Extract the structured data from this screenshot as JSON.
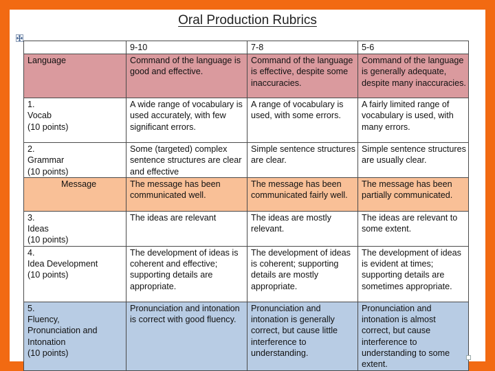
{
  "title": "Oral Production Rubrics",
  "header": [
    "",
    "9-10",
    "7-8",
    "5-6"
  ],
  "rows": [
    {
      "kind": "section",
      "label": "Language",
      "cells": [
        "Command of the language is good and effective.",
        "Command of the language is effective, despite some inaccuracies.",
        "Command of the language is generally adequate, despite many inaccuracies."
      ]
    },
    {
      "kind": "criterion",
      "num": "1.",
      "name": "Vocab",
      "points": "(10 points)",
      "cells": [
        "A wide range of vocabulary is used accurately, with few significant errors.",
        "A range of vocabulary is used, with some errors.",
        "A fairly limited range of vocabulary is used, with many errors."
      ]
    },
    {
      "kind": "criterion",
      "num": "2.",
      "name": "Grammar",
      "points": "(10 points)",
      "cells": [
        "Some (targeted) complex sentence structures are clear and effective",
        "Simple sentence structures are clear.",
        "Simple sentence structures are usually clear."
      ]
    },
    {
      "kind": "section",
      "label": "Message",
      "cells": [
        "The message has been communicated well.",
        "The message has been communicated fairly well.",
        "The message has been partially communicated."
      ]
    },
    {
      "kind": "criterion",
      "num": "3.",
      "name": "Ideas",
      "points": "(10 points)",
      "cells": [
        "The ideas are relevant",
        "The ideas are mostly relevant.",
        "The ideas are relevant to some extent."
      ]
    },
    {
      "kind": "criterion",
      "num": "4.",
      "name": "Idea Development",
      "points": "(10 points)",
      "cells": [
        "The development of ideas is coherent and effective; supporting details are appropriate.",
        "The development of ideas is coherent; supporting details are mostly appropriate.",
        "The development of ideas is evident at times; supporting details are sometimes appropriate."
      ]
    },
    {
      "kind": "criterion",
      "num": "5.",
      "name": "Fluency, Pronunciation and Intonation",
      "points": "(10 points)",
      "cells": [
        "Pronunciation and intonation is correct with good fluency.",
        "Pronunciation and intonation is generally correct, but cause little interference to understanding.",
        "Pronunciation and intonation is almost correct, but cause interference to understanding to some extent."
      ]
    }
  ],
  "colors": {
    "frame": "#f26a12",
    "language_row": "#da9a9e",
    "grammar_row": "#da9a9e",
    "message_row": "#f9c097",
    "fluency_row": "#b8cce4"
  },
  "icons": {
    "table_handle": "move-icon",
    "resize_handle": "resize-icon"
  }
}
